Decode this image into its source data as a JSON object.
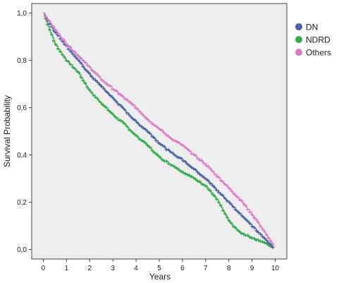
{
  "chart_data": {
    "type": "line",
    "subtype": "kaplan-meier survival curves with censoring marks",
    "title": "",
    "xlabel": "Years",
    "ylabel": "Survival Probability",
    "xlim": [
      -0.5,
      10.5
    ],
    "ylim": [
      -0.04,
      1.04
    ],
    "x_ticks": [
      0,
      1,
      2,
      3,
      4,
      5,
      6,
      7,
      8,
      9,
      10
    ],
    "x_tick_labels": [
      "0",
      "1",
      "2",
      "3",
      "4",
      "5",
      "6",
      "7",
      "8",
      "9",
      "10"
    ],
    "y_ticks": [
      0.0,
      0.2,
      0.4,
      0.6,
      0.8,
      1.0
    ],
    "y_tick_labels": [
      "0,0",
      "0,2",
      "0,4",
      "0,6",
      "0,8",
      "1,0"
    ],
    "grid": false,
    "legend_position": "top-right outside plot",
    "plot_background": "#eeeeee",
    "series": [
      {
        "name": "DN",
        "color": "#4a5ea8",
        "x": [
          0,
          0.5,
          1,
          1.5,
          2,
          2.5,
          3,
          3.5,
          4,
          4.5,
          5,
          5.5,
          6,
          6.5,
          7,
          7.5,
          8,
          8.5,
          9,
          9.5,
          9.9
        ],
        "y": [
          1.0,
          0.92,
          0.86,
          0.8,
          0.74,
          0.69,
          0.64,
          0.59,
          0.54,
          0.5,
          0.45,
          0.41,
          0.38,
          0.34,
          0.3,
          0.25,
          0.2,
          0.15,
          0.1,
          0.05,
          0.01
        ]
      },
      {
        "name": "NDRD",
        "color": "#2faa4a",
        "x": [
          0,
          0.5,
          1,
          1.5,
          2,
          2.5,
          3,
          3.5,
          4,
          4.5,
          5,
          5.5,
          6,
          6.5,
          7,
          7.5,
          8,
          8.5,
          9,
          9.5,
          9.9
        ],
        "y": [
          1.0,
          0.87,
          0.8,
          0.75,
          0.67,
          0.62,
          0.57,
          0.53,
          0.48,
          0.44,
          0.39,
          0.36,
          0.33,
          0.3,
          0.27,
          0.21,
          0.12,
          0.07,
          0.05,
          0.03,
          0.01
        ]
      },
      {
        "name": "Others",
        "color": "#d97cc8",
        "x": [
          0,
          0.5,
          1,
          1.5,
          2,
          2.5,
          3,
          3.5,
          4,
          4.5,
          5,
          5.5,
          6,
          6.5,
          7,
          7.5,
          8,
          8.5,
          9,
          9.5,
          9.9
        ],
        "y": [
          1.0,
          0.93,
          0.87,
          0.82,
          0.77,
          0.72,
          0.68,
          0.64,
          0.6,
          0.55,
          0.51,
          0.47,
          0.44,
          0.4,
          0.36,
          0.31,
          0.26,
          0.21,
          0.15,
          0.08,
          0.02
        ]
      }
    ]
  }
}
